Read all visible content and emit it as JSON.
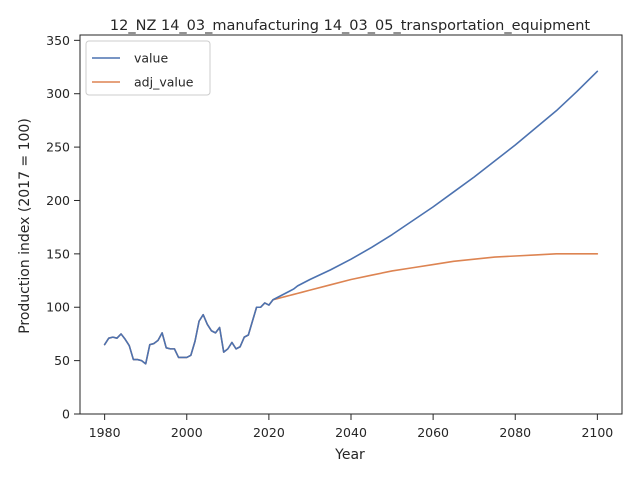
{
  "chart_data": {
    "type": "line",
    "title": "12_NZ 14_03_manufacturing 14_03_05_transportation_equipment",
    "xlabel": "Year",
    "ylabel": "Production index (2017 = 100)",
    "xlim": [
      1974,
      2106
    ],
    "ylim": [
      0,
      355
    ],
    "xticks": [
      1980,
      2000,
      2020,
      2040,
      2060,
      2080,
      2100
    ],
    "yticks": [
      0,
      50,
      100,
      150,
      200,
      250,
      300,
      350
    ],
    "grid": false,
    "legend_position": "top-left",
    "series": [
      {
        "name": "value",
        "color": "#4c72b0",
        "x": [
          1980,
          1981,
          1982,
          1983,
          1984,
          1985,
          1986,
          1987,
          1988,
          1989,
          1990,
          1991,
          1992,
          1993,
          1994,
          1995,
          1996,
          1997,
          1998,
          1999,
          2000,
          2001,
          2002,
          2003,
          2004,
          2005,
          2006,
          2007,
          2008,
          2009,
          2010,
          2011,
          2012,
          2013,
          2014,
          2015,
          2016,
          2017,
          2018,
          2019,
          2020,
          2021,
          2022,
          2023,
          2024,
          2025,
          2026,
          2027,
          2028,
          2030,
          2035,
          2040,
          2045,
          2050,
          2055,
          2060,
          2065,
          2070,
          2075,
          2080,
          2085,
          2090,
          2095,
          2100
        ],
        "y": [
          65,
          71,
          72,
          71,
          75,
          70,
          64,
          51,
          51,
          50,
          47,
          65,
          66,
          69,
          76,
          62,
          61,
          61,
          53,
          53,
          53,
          55,
          68,
          87,
          93,
          84,
          78,
          76,
          81,
          58,
          61,
          67,
          61,
          63,
          72,
          74,
          87,
          100,
          100,
          104,
          102,
          107,
          109,
          111,
          113,
          115,
          117,
          120,
          122,
          126,
          135,
          145,
          156,
          168,
          181,
          194,
          208,
          222,
          237,
          252,
          268,
          284,
          302,
          321
        ]
      },
      {
        "name": "adj_value",
        "color": "#dd8452",
        "x": [
          1980,
          1981,
          1982,
          1983,
          1984,
          1985,
          1986,
          1987,
          1988,
          1989,
          1990,
          1991,
          1992,
          1993,
          1994,
          1995,
          1996,
          1997,
          1998,
          1999,
          2000,
          2001,
          2002,
          2003,
          2004,
          2005,
          2006,
          2007,
          2008,
          2009,
          2010,
          2011,
          2012,
          2013,
          2014,
          2015,
          2016,
          2017,
          2018,
          2019,
          2020,
          2021,
          2022,
          2023,
          2024,
          2025,
          2026,
          2027,
          2028,
          2030,
          2035,
          2040,
          2045,
          2050,
          2055,
          2060,
          2065,
          2070,
          2075,
          2080,
          2085,
          2090,
          2095,
          2100
        ],
        "y": [
          65,
          71,
          72,
          71,
          75,
          70,
          64,
          51,
          51,
          50,
          47,
          65,
          66,
          69,
          76,
          62,
          61,
          61,
          53,
          53,
          53,
          55,
          68,
          87,
          93,
          84,
          78,
          76,
          81,
          58,
          61,
          67,
          61,
          63,
          72,
          74,
          87,
          100,
          100,
          104,
          102,
          107,
          108,
          109,
          110,
          111,
          112,
          113,
          114,
          116,
          121,
          126,
          130,
          134,
          137,
          140,
          143,
          145,
          147,
          148,
          149,
          150,
          150,
          150
        ]
      }
    ]
  }
}
